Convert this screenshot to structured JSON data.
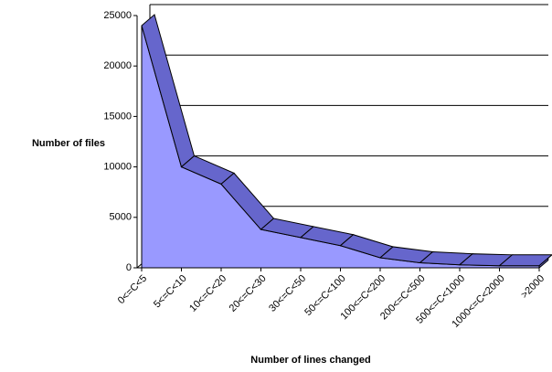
{
  "chart_data": {
    "type": "area",
    "y_label": "Number of files",
    "x_label": "Number of lines changed",
    "categories": [
      "0<=C<5",
      "5<=C<10",
      "10<=C<20",
      "20<=C<30",
      "30<=C<50",
      "50<=C<100",
      "100<=C<200",
      "200<=C<500",
      "500<=C<1000",
      "1000<=C<2000",
      ">2000"
    ],
    "values": [
      24000,
      10000,
      8300,
      3800,
      3000,
      2200,
      1000,
      500,
      300,
      200,
      200
    ],
    "color": "#9999ff",
    "top_color": "#6666cc",
    "ylim": [
      0,
      25000
    ],
    "yticks": [
      0,
      5000,
      10000,
      15000,
      20000,
      25000
    ],
    "grid": true
  }
}
